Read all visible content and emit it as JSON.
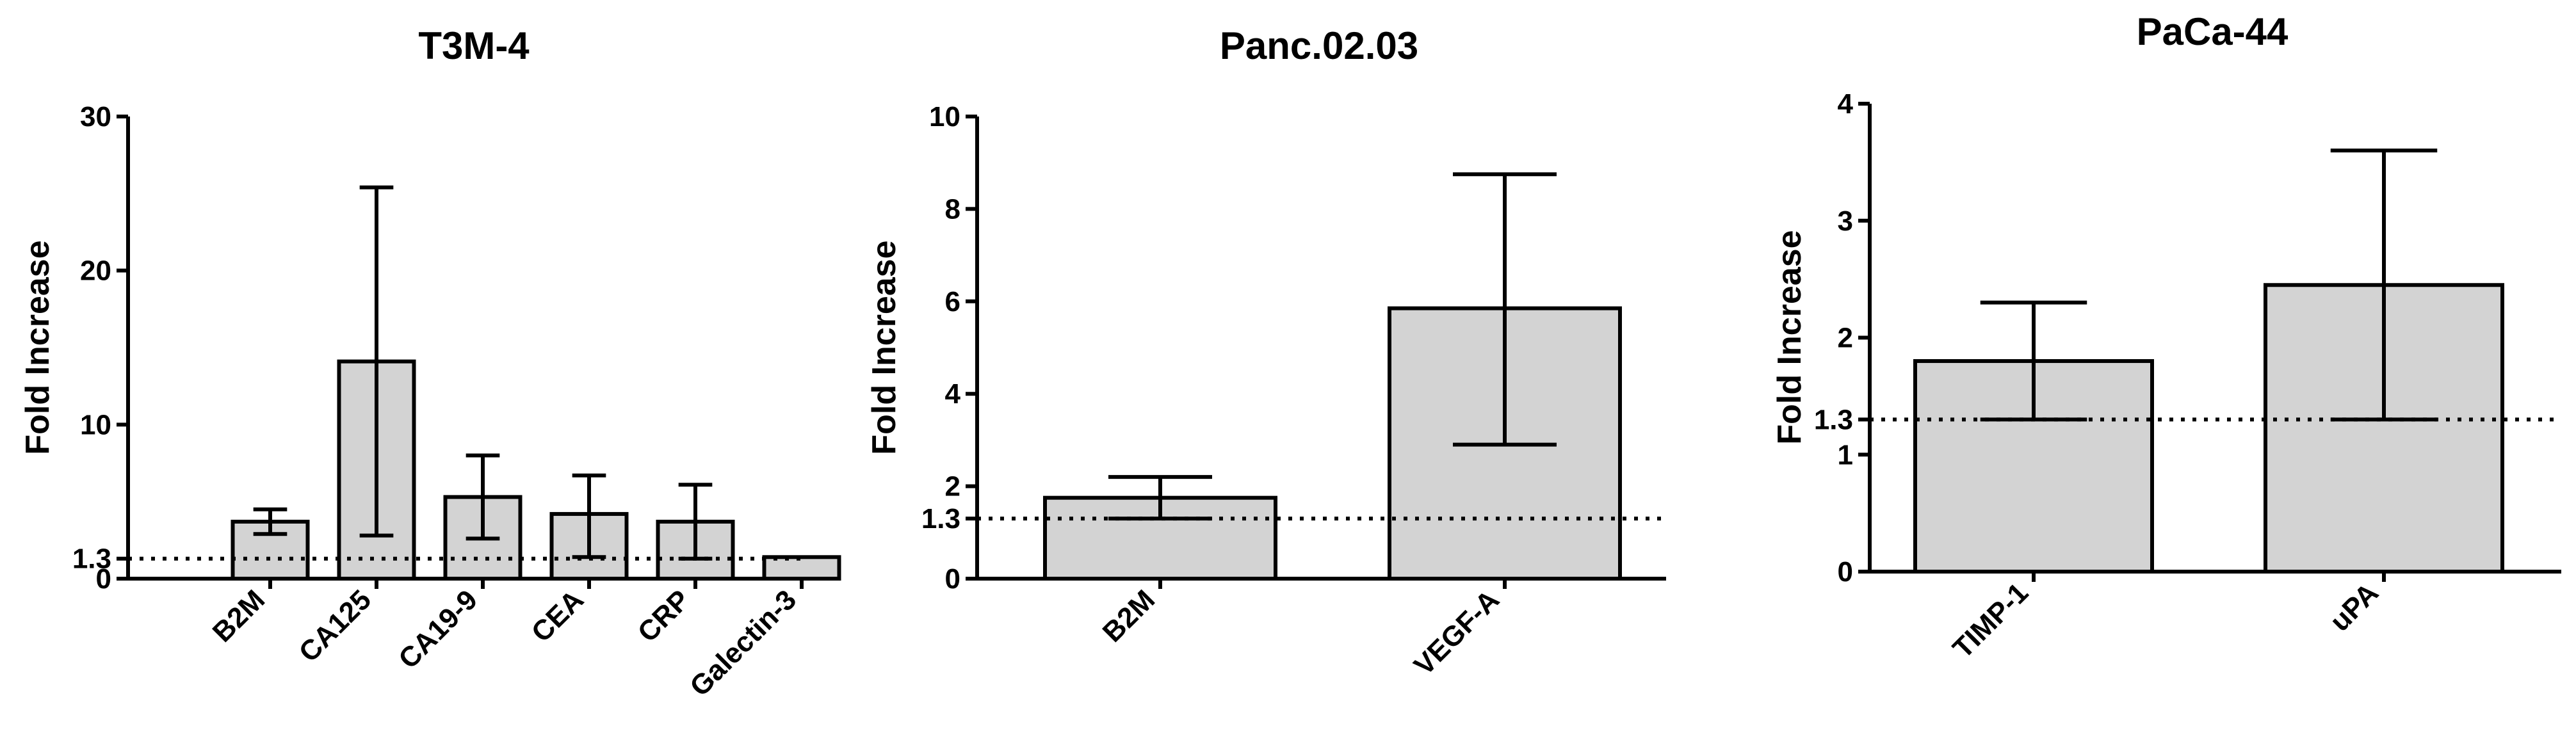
{
  "chart_data": [
    {
      "type": "bar",
      "title": "T3M-4",
      "ylabel": "Fold Increase",
      "xlabel": "",
      "ylim": [
        0,
        30
      ],
      "yticks": [
        0,
        1.3,
        10,
        20,
        30
      ],
      "reference_line": 1.3,
      "categories": [
        "B2M",
        "CA125",
        "CA19-9",
        "CEA",
        "CRP",
        "Galectin-3"
      ],
      "values": [
        3.7,
        14.1,
        5.3,
        4.2,
        3.7,
        1.4
      ],
      "error_low": [
        2.9,
        2.8,
        2.6,
        1.4,
        1.3,
        1.4
      ],
      "error_high": [
        4.5,
        25.4,
        8.0,
        6.7,
        6.1,
        1.4
      ]
    },
    {
      "type": "bar",
      "title": "Panc.02.03",
      "ylabel": "Fold Increase",
      "xlabel": "",
      "ylim": [
        0,
        10
      ],
      "yticks": [
        0,
        1.3,
        2,
        4,
        6,
        8,
        10
      ],
      "reference_line": 1.3,
      "categories": [
        "B2M",
        "VEGF-A"
      ],
      "values": [
        1.75,
        5.85
      ],
      "error_low": [
        1.3,
        2.9
      ],
      "error_high": [
        2.2,
        8.75
      ]
    },
    {
      "type": "bar",
      "title": "PaCa-44",
      "ylabel": "Fold Increase",
      "xlabel": "",
      "ylim": [
        0,
        4
      ],
      "yticks": [
        0,
        1,
        1.3,
        2,
        3,
        4
      ],
      "reference_line": 1.3,
      "categories": [
        "TIMP-1",
        "uPA"
      ],
      "values": [
        1.8,
        2.45
      ],
      "error_low": [
        1.3,
        1.3
      ],
      "error_high": [
        2.3,
        3.6
      ]
    }
  ]
}
